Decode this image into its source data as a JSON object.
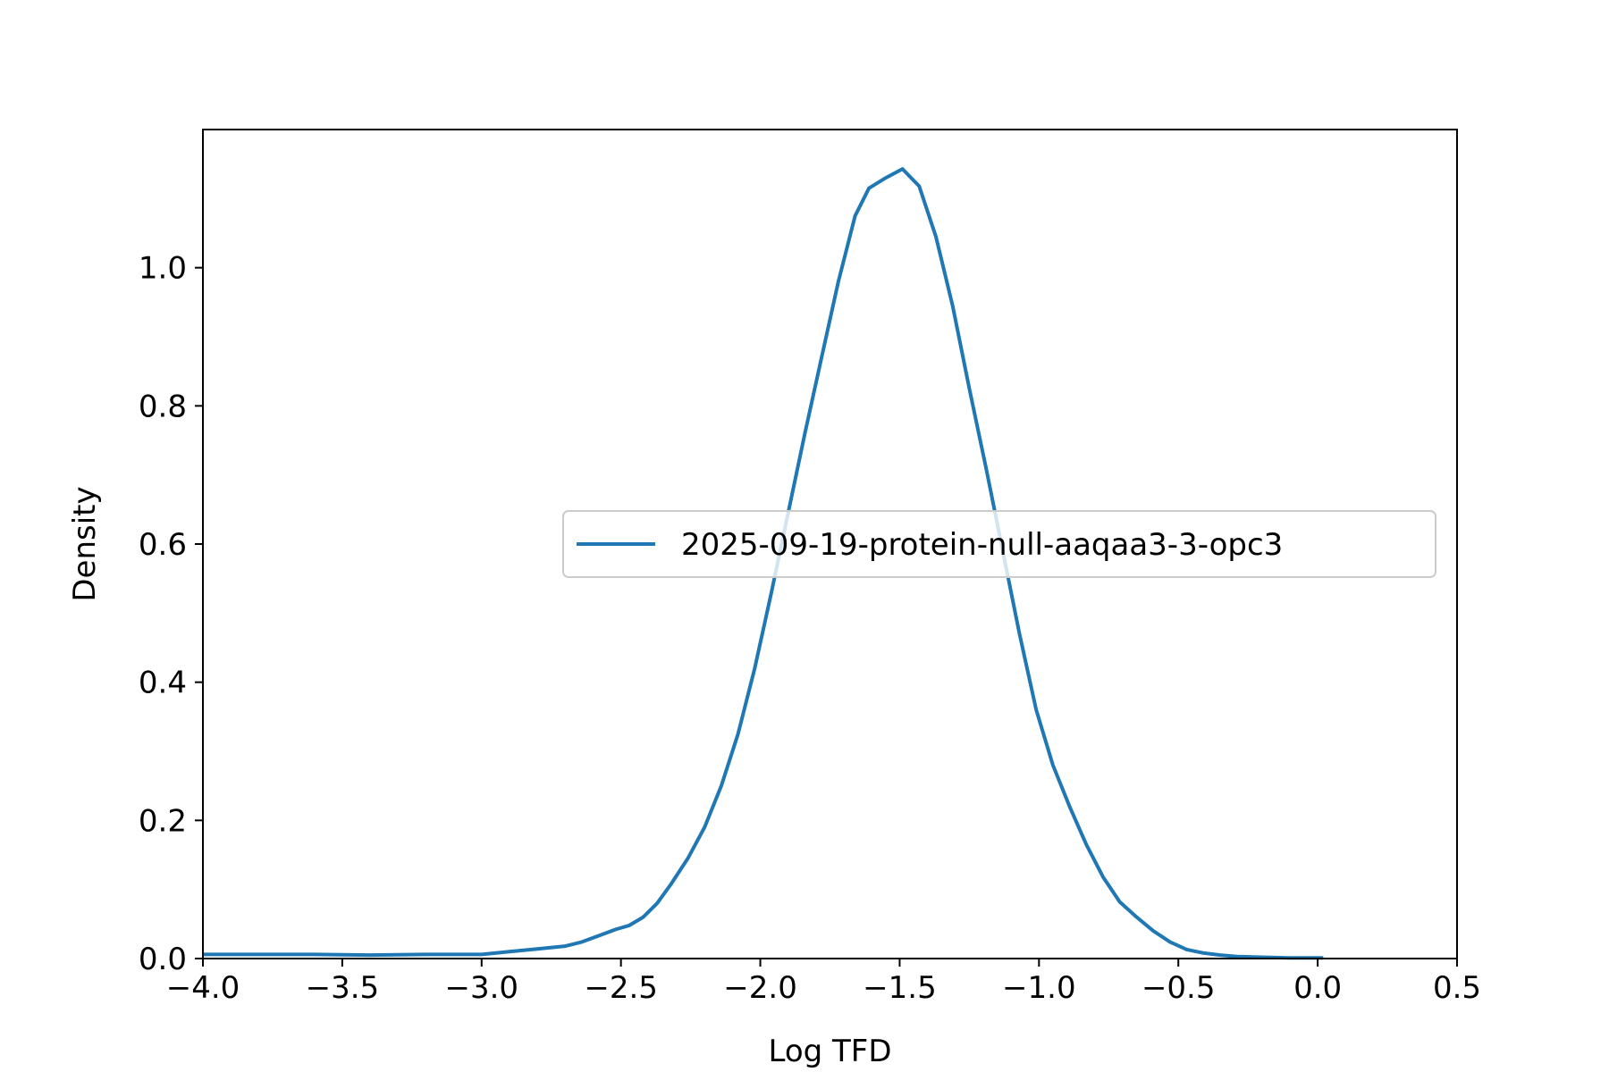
{
  "colors": {
    "series": "#1f77b4",
    "axes": "#000000",
    "legend_border": "#cccccc"
  },
  "chart_data": {
    "type": "line",
    "title": "",
    "xlabel": "Log TFD",
    "ylabel": "Density",
    "xlim": [
      -4.0,
      0.5
    ],
    "ylim": [
      0.0,
      1.2
    ],
    "grid": false,
    "legend_position": "center-right",
    "x_ticks": [
      "−4.0",
      "−3.5",
      "−3.0",
      "−2.5",
      "−2.0",
      "−1.5",
      "−1.0",
      "−0.5",
      "0.0",
      "0.5"
    ],
    "x_tick_values": [
      -4.0,
      -3.5,
      -3.0,
      -2.5,
      -2.0,
      -1.5,
      -1.0,
      -0.5,
      0.0,
      0.5
    ],
    "y_ticks": [
      "0.0",
      "0.2",
      "0.4",
      "0.6",
      "0.8",
      "1.0"
    ],
    "y_tick_values": [
      0.0,
      0.2,
      0.4,
      0.6,
      0.8,
      1.0
    ],
    "series": [
      {
        "name": "2025-09-19-protein-null-aaqaa3-3-opc3",
        "x": [
          -4.0,
          -3.8,
          -3.6,
          -3.4,
          -3.2,
          -3.0,
          -2.9,
          -2.8,
          -2.7,
          -2.64,
          -2.58,
          -2.52,
          -2.47,
          -2.42,
          -2.37,
          -2.32,
          -2.26,
          -2.2,
          -2.14,
          -2.08,
          -2.02,
          -1.96,
          -1.9,
          -1.84,
          -1.78,
          -1.72,
          -1.66,
          -1.61,
          -1.55,
          -1.49,
          -1.43,
          -1.37,
          -1.31,
          -1.25,
          -1.19,
          -1.13,
          -1.07,
          -1.01,
          -0.95,
          -0.89,
          -0.83,
          -0.77,
          -0.71,
          -0.65,
          -0.59,
          -0.53,
          -0.47,
          -0.41,
          -0.35,
          -0.29,
          -0.2,
          -0.1,
          0.02
        ],
        "values": [
          0.006,
          0.006,
          0.006,
          0.005,
          0.006,
          0.006,
          0.01,
          0.014,
          0.018,
          0.024,
          0.033,
          0.042,
          0.048,
          0.06,
          0.08,
          0.108,
          0.145,
          0.19,
          0.25,
          0.325,
          0.42,
          0.53,
          0.645,
          0.76,
          0.87,
          0.98,
          1.075,
          1.115,
          1.13,
          1.143,
          1.118,
          1.045,
          0.945,
          0.825,
          0.71,
          0.59,
          0.47,
          0.36,
          0.28,
          0.22,
          0.165,
          0.118,
          0.082,
          0.06,
          0.04,
          0.024,
          0.013,
          0.008,
          0.005,
          0.003,
          0.002,
          0.001,
          0.001
        ]
      }
    ]
  }
}
